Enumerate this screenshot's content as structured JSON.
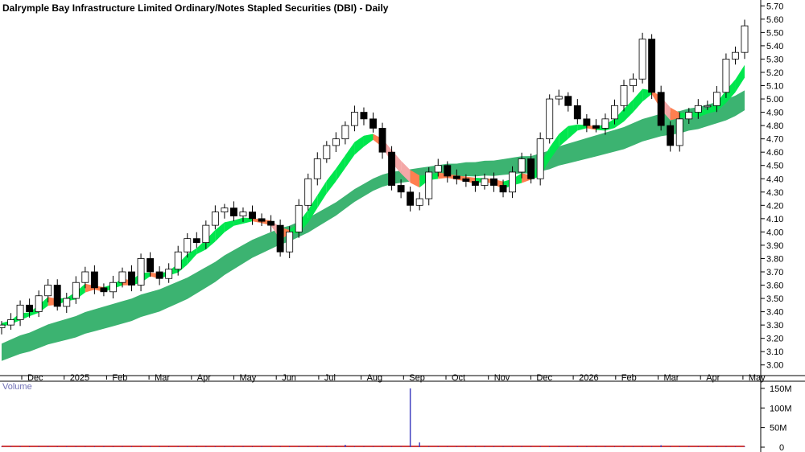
{
  "title": "Dalrymple Bay Infrastructure Limited Ordinary/Notes Stapled Securities (DBI) - Daily",
  "volume_label": "Volume",
  "colors": {
    "long_band": "#3cb371",
    "short_band_up": "#00e64d",
    "short_band_down": "#ff7f50",
    "short_band_down_light": "#f4a7a7",
    "candle_up": "#ffffff",
    "candle_down": "#000000",
    "volume_bar": "#4040c0",
    "volume_line": "#c00000"
  },
  "chart_data": [
    {
      "type": "line",
      "subtype": "candlestick_with_ma_bands",
      "title": "Dalrymple Bay Infrastructure Limited Ordinary/Notes Stapled Securities (DBI) - Daily",
      "x_tick_labels": [
        "Dec",
        "2025",
        "Feb",
        "Mar",
        "Apr",
        "May",
        "Jun",
        "Jul",
        "Aug",
        "Sep",
        "Oct",
        "Nov",
        "Dec",
        "2026",
        "Feb",
        "Mar",
        "Apr",
        "May"
      ],
      "y_tick_labels": [
        "3.00",
        "3.10",
        "3.20",
        "3.30",
        "3.40",
        "3.50",
        "3.60",
        "3.70",
        "3.80",
        "3.90",
        "4.00",
        "4.10",
        "4.20",
        "4.30",
        "4.40",
        "4.50",
        "4.60",
        "4.70",
        "4.80",
        "4.90",
        "5.00",
        "5.10",
        "5.20",
        "5.30",
        "5.40",
        "5.50",
        "5.60",
        "5.70"
      ],
      "ylim": [
        2.95,
        5.72
      ],
      "grid": false,
      "series": [
        {
          "values": [
            3.3,
            3.34,
            3.45,
            3.4,
            3.52,
            3.6,
            3.44,
            3.5,
            3.62,
            3.7,
            3.58,
            3.55,
            3.62,
            3.7,
            3.6,
            3.8,
            3.7,
            3.65,
            3.72,
            3.85,
            3.95,
            3.92,
            4.05,
            4.15,
            4.18,
            4.12,
            4.15,
            4.1,
            4.08,
            4.05,
            3.85,
            4.0,
            4.2,
            4.4,
            4.55,
            4.65,
            4.7,
            4.8,
            4.9,
            4.85,
            4.78,
            4.6,
            4.35,
            4.3,
            4.2,
            4.25,
            4.45,
            4.5,
            4.42,
            4.4,
            4.38,
            4.35,
            4.4,
            4.35,
            4.3,
            4.45,
            4.55,
            4.4,
            4.7,
            5.0,
            5.02,
            4.95,
            4.85,
            4.8,
            4.78,
            4.85,
            4.95,
            5.1,
            5.15,
            5.45,
            5.05,
            4.8,
            4.65,
            4.85,
            4.9,
            4.95,
            4.95,
            5.05,
            5.3,
            5.35,
            5.55
          ]
        },
        {
          "values": [
            3.31,
            3.33,
            3.38,
            3.39,
            3.44,
            3.5,
            3.49,
            3.5,
            3.54,
            3.6,
            3.59,
            3.58,
            3.6,
            3.64,
            3.63,
            3.68,
            3.69,
            3.68,
            3.7,
            3.75,
            3.82,
            3.87,
            3.93,
            4.0,
            4.06,
            4.08,
            4.1,
            4.1,
            4.09,
            4.08,
            4.02,
            4.01,
            4.06,
            4.15,
            4.26,
            4.37,
            4.46,
            4.56,
            4.66,
            4.71,
            4.73,
            4.69,
            4.6,
            4.52,
            4.45,
            4.41,
            4.42,
            4.44,
            4.43,
            4.42,
            4.41,
            4.4,
            4.4,
            4.39,
            4.37,
            4.39,
            4.43,
            4.42,
            4.5,
            4.62,
            4.72,
            4.78,
            4.8,
            4.8,
            4.79,
            4.8,
            4.84,
            4.91,
            4.98,
            5.06,
            5.06,
            5.0,
            4.92,
            4.89,
            4.89,
            4.9,
            4.92,
            4.96,
            5.05,
            5.13,
            5.24
          ]
        },
        {
          "values": [
            3.13,
            3.16,
            3.19,
            3.21,
            3.24,
            3.27,
            3.29,
            3.31,
            3.33,
            3.36,
            3.38,
            3.4,
            3.42,
            3.44,
            3.46,
            3.49,
            3.51,
            3.53,
            3.56,
            3.59,
            3.62,
            3.66,
            3.7,
            3.74,
            3.79,
            3.83,
            3.87,
            3.91,
            3.94,
            3.97,
            4.0,
            4.02,
            4.05,
            4.08,
            4.12,
            4.16,
            4.2,
            4.25,
            4.3,
            4.34,
            4.38,
            4.41,
            4.43,
            4.44,
            4.45,
            4.46,
            4.47,
            4.48,
            4.49,
            4.49,
            4.5,
            4.5,
            4.51,
            4.51,
            4.52,
            4.53,
            4.54,
            4.54,
            4.56,
            4.58,
            4.61,
            4.63,
            4.65,
            4.67,
            4.69,
            4.71,
            4.73,
            4.75,
            4.78,
            4.81,
            4.83,
            4.85,
            4.86,
            4.87,
            4.89,
            4.9,
            4.92,
            4.94,
            4.96,
            4.99,
            5.03
          ]
        }
      ]
    },
    {
      "type": "bar",
      "title": "Volume",
      "y_tick_labels": [
        "150M",
        "100M",
        "50M",
        "0"
      ],
      "ylim": [
        0,
        160
      ],
      "spikes": [
        {
          "x_index": 44,
          "value": 150
        },
        {
          "x_index": 45,
          "value": 12
        },
        {
          "x_index": 37,
          "value": 6
        },
        {
          "x_index": 71,
          "value": 5
        }
      ]
    }
  ]
}
